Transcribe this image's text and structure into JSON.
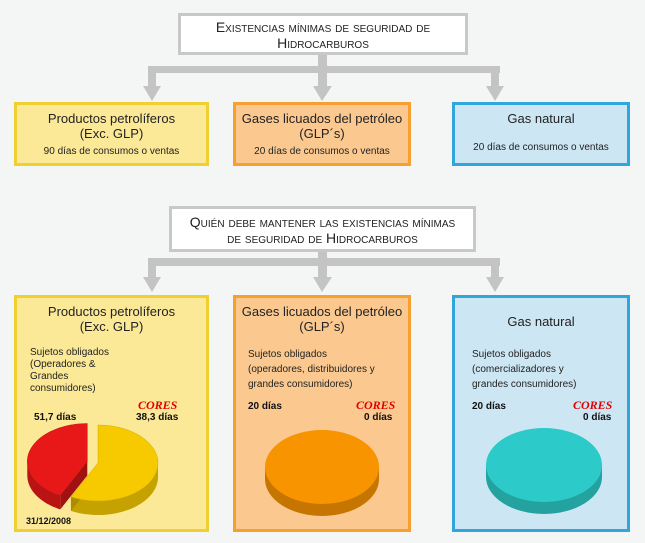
{
  "top": {
    "title_line1": "Existencias mínimas de seguridad de",
    "title_line2": "Hidrocarburos",
    "boxes": [
      {
        "name_line1": "Productos petrolíferos",
        "name_line2": "(Exc. GLP)",
        "detail": "90 días de consumos o ventas",
        "fill": "#fbe997",
        "border": "#f0d030"
      },
      {
        "name_line1": "Gases licuados del petróleo",
        "name_line2": "(GLP´s)",
        "detail": "20 días de consumos o ventas",
        "fill": "#fbc98f",
        "border": "#f5a030"
      },
      {
        "name_line1": "Gas natural",
        "name_line2": "",
        "detail": "20 días de consumos o ventas",
        "fill": "#cde6f3",
        "border": "#30a6dc"
      }
    ]
  },
  "bottom": {
    "title_line1": "Quién debe mantener las existencias mínimas",
    "title_line2": "de seguridad de Hidrocarburos",
    "boxes": [
      {
        "name_line1": "Productos petrolíferos",
        "name_line2": "(Exc. GLP)",
        "subjects_lines": [
          "Sujetos obligados",
          "(Operadores &",
          "Grandes",
          "consumidores)"
        ],
        "subjects_value": "51,7 días",
        "cores_label": "CORES",
        "cores_value": "38,3 días",
        "date": "31/12/2008",
        "fill": "#fbe997",
        "border": "#f0d030"
      },
      {
        "name_line1": "Gases licuados del petróleo",
        "name_line2": "(GLP´s)",
        "subjects_lines": [
          "Sujetos obligados",
          "(operadores, distribuidores y",
          "grandes consumidores)"
        ],
        "subjects_value": "20 días",
        "cores_label": "CORES",
        "cores_value": "0 días",
        "fill": "#fbc98f",
        "border": "#f5a030"
      },
      {
        "name_line1": "Gas natural",
        "name_line2": "",
        "subjects_lines": [
          "Sujetos obligados",
          "(comercializadores y",
          "grandes consumidores)"
        ],
        "subjects_value": "20 días",
        "cores_label": "CORES",
        "cores_value": "0 días",
        "fill": "#cde6f3",
        "border": "#30a6dc"
      }
    ]
  },
  "chart_data": [
    {
      "type": "pie",
      "values": [
        51.7,
        38.3
      ],
      "colors": [
        "#f7ca00",
        "#e81818"
      ]
    },
    {
      "type": "pie",
      "values": [
        20,
        0
      ],
      "colors": [
        "#f79400"
      ]
    },
    {
      "type": "pie",
      "values": [
        20,
        0
      ],
      "colors": [
        "#2ccac8"
      ]
    }
  ],
  "colors": {
    "connector": "#c4c4c4",
    "title_border": "#c8c8c8"
  }
}
